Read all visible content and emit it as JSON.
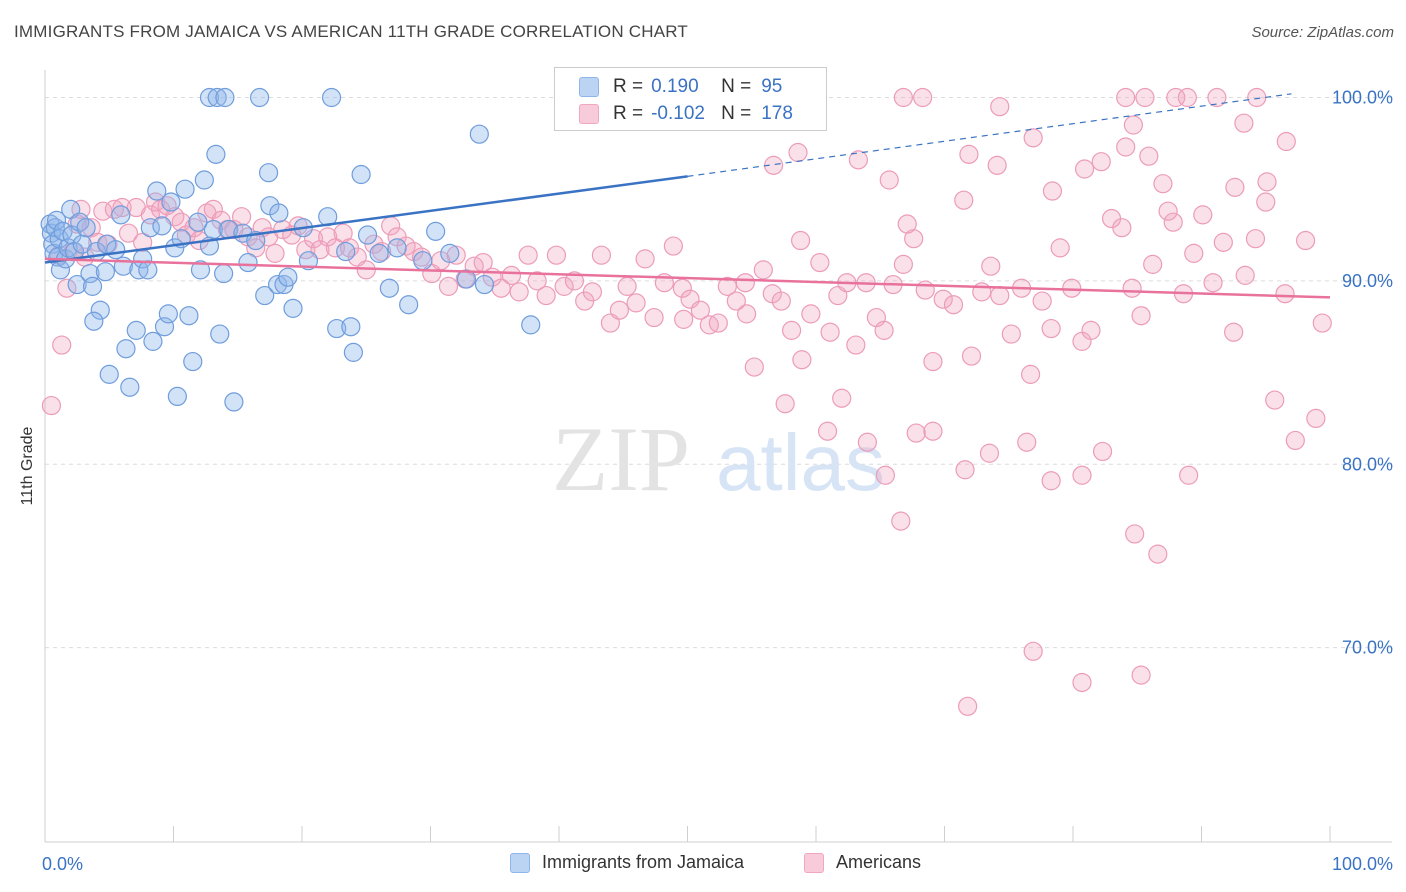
{
  "header": {
    "title": "IMMIGRANTS FROM JAMAICA VS AMERICAN 11TH GRADE CORRELATION CHART",
    "source": "Source: ZipAtlas.com"
  },
  "watermark": {
    "zip": "ZIP",
    "atlas": "atlas"
  },
  "legend": {
    "rows": [
      {
        "r_label": "R =",
        "r_value": "0.190",
        "n_label": "N =",
        "n_value": "95",
        "color": "#8fb6ea"
      },
      {
        "r_label": "R =",
        "r_value": "-0.102",
        "n_label": "N =",
        "n_value": "178",
        "color": "#f2a6bf"
      }
    ]
  },
  "bottom_legend": {
    "items": [
      {
        "label": "Immigrants from Jamaica",
        "color": "#8fb6ea"
      },
      {
        "label": "Americans",
        "color": "#f2a6bf"
      }
    ]
  },
  "chart_data": {
    "type": "scatter",
    "ylabel": "11th Grade",
    "xlabel": "",
    "x_tick_labels": [
      "0.0%",
      "100.0%"
    ],
    "y_tick_labels": [
      "100.0%",
      "90.0%",
      "80.0%",
      "70.0%"
    ],
    "xlim": [
      0,
      100
    ],
    "ylim": [
      59.4,
      101.5
    ],
    "y_ticks": [
      100,
      90,
      80,
      70
    ],
    "grid": "horizontal dashed",
    "colors": {
      "blue": "#3a73c4",
      "blue_fill": "#8fb6ea",
      "pink": "#e8729b",
      "pink_fill": "#f2a6bf",
      "value_text": "#3a73c4"
    },
    "series": [
      {
        "name": "Immigrants from Jamaica",
        "trend": {
          "x": [
            0,
            50
          ],
          "y": [
            91.0,
            95.7
          ],
          "extended": {
            "x": [
              50,
              97
            ],
            "y": [
              95.7,
              100.2
            ]
          }
        },
        "points": [
          [
            0.4,
            93.1
          ],
          [
            0.5,
            92.6
          ],
          [
            0.6,
            92.0
          ],
          [
            0.7,
            91.5
          ],
          [
            0.8,
            92.9
          ],
          [
            0.9,
            93.3
          ],
          [
            1.0,
            91.3
          ],
          [
            1.1,
            92.3
          ],
          [
            1.2,
            90.6
          ],
          [
            1.4,
            92.7
          ],
          [
            1.6,
            91.2
          ],
          [
            1.8,
            91.8
          ],
          [
            2.0,
            93.9
          ],
          [
            2.1,
            92.5
          ],
          [
            2.3,
            91.6
          ],
          [
            2.5,
            89.8
          ],
          [
            2.7,
            93.2
          ],
          [
            2.9,
            92.0
          ],
          [
            3.2,
            92.9
          ],
          [
            3.5,
            90.4
          ],
          [
            3.7,
            89.7
          ],
          [
            4.0,
            91.6
          ],
          [
            4.3,
            88.4
          ],
          [
            3.8,
            87.8
          ],
          [
            4.7,
            90.5
          ],
          [
            4.8,
            92.0
          ],
          [
            5.0,
            84.9
          ],
          [
            5.5,
            91.7
          ],
          [
            5.9,
            93.6
          ],
          [
            6.1,
            90.8
          ],
          [
            6.3,
            86.3
          ],
          [
            6.6,
            84.2
          ],
          [
            7.1,
            87.3
          ],
          [
            7.3,
            90.6
          ],
          [
            7.6,
            91.2
          ],
          [
            8.0,
            90.6
          ],
          [
            8.2,
            92.9
          ],
          [
            8.4,
            86.7
          ],
          [
            8.7,
            94.9
          ],
          [
            9.1,
            93.0
          ],
          [
            9.3,
            87.5
          ],
          [
            9.6,
            88.2
          ],
          [
            9.8,
            94.3
          ],
          [
            10.1,
            91.8
          ],
          [
            10.3,
            83.7
          ],
          [
            10.6,
            92.3
          ],
          [
            10.9,
            95.0
          ],
          [
            11.2,
            88.1
          ],
          [
            11.5,
            85.6
          ],
          [
            11.9,
            93.2
          ],
          [
            12.1,
            90.6
          ],
          [
            12.4,
            95.5
          ],
          [
            12.8,
            91.9
          ],
          [
            13.1,
            92.8
          ],
          [
            13.3,
            96.9
          ],
          [
            13.6,
            87.1
          ],
          [
            13.9,
            90.4
          ],
          [
            14.3,
            92.8
          ],
          [
            14.7,
            83.4
          ],
          [
            15.4,
            92.6
          ],
          [
            15.8,
            91.0
          ],
          [
            16.4,
            92.2
          ],
          [
            17.1,
            89.2
          ],
          [
            17.4,
            95.9
          ],
          [
            17.5,
            94.1
          ],
          [
            18.1,
            89.8
          ],
          [
            18.2,
            93.7
          ],
          [
            18.6,
            89.8
          ],
          [
            18.9,
            90.2
          ],
          [
            19.3,
            88.5
          ],
          [
            20.1,
            92.9
          ],
          [
            20.5,
            91.1
          ],
          [
            22.0,
            93.5
          ],
          [
            22.7,
            87.4
          ],
          [
            23.4,
            91.6
          ],
          [
            23.8,
            87.5
          ],
          [
            24.0,
            86.1
          ],
          [
            24.6,
            95.8
          ],
          [
            25.1,
            92.5
          ],
          [
            26.0,
            91.5
          ],
          [
            26.8,
            89.6
          ],
          [
            27.4,
            91.8
          ],
          [
            28.3,
            88.7
          ],
          [
            29.4,
            91.1
          ],
          [
            30.4,
            92.7
          ],
          [
            31.5,
            91.5
          ],
          [
            32.8,
            90.1
          ],
          [
            34.2,
            89.8
          ],
          [
            37.8,
            87.6
          ],
          [
            12.8,
            100.0
          ],
          [
            13.4,
            100.0
          ],
          [
            14.0,
            100.0
          ],
          [
            16.7,
            100.0
          ],
          [
            22.3,
            100.0
          ],
          [
            33.8,
            98.0
          ]
        ]
      },
      {
        "name": "Americans",
        "trend": {
          "x": [
            0,
            100
          ],
          "y": [
            91.2,
            89.1
          ]
        },
        "points": [
          [
            0.5,
            83.2
          ],
          [
            1.1,
            91.4
          ],
          [
            1.3,
            86.5
          ],
          [
            1.7,
            89.6
          ],
          [
            2.2,
            91.6
          ],
          [
            2.5,
            93.1
          ],
          [
            2.8,
            93.9
          ],
          [
            3.1,
            91.3
          ],
          [
            3.6,
            92.9
          ],
          [
            4.1,
            92.1
          ],
          [
            4.5,
            93.8
          ],
          [
            4.9,
            92.0
          ],
          [
            5.4,
            93.9
          ],
          [
            6.0,
            94.0
          ],
          [
            6.5,
            92.6
          ],
          [
            7.1,
            94.0
          ],
          [
            7.6,
            92.1
          ],
          [
            8.2,
            93.6
          ],
          [
            8.6,
            94.3
          ],
          [
            9.0,
            93.9
          ],
          [
            9.5,
            94.1
          ],
          [
            10.1,
            93.5
          ],
          [
            10.6,
            93.2
          ],
          [
            11.0,
            92.5
          ],
          [
            11.6,
            92.9
          ],
          [
            12.0,
            92.2
          ],
          [
            12.6,
            93.7
          ],
          [
            13.1,
            93.9
          ],
          [
            13.7,
            93.3
          ],
          [
            14.2,
            92.8
          ],
          [
            14.7,
            92.8
          ],
          [
            15.3,
            93.5
          ],
          [
            15.8,
            92.4
          ],
          [
            16.4,
            91.8
          ],
          [
            16.9,
            92.9
          ],
          [
            17.4,
            92.4
          ],
          [
            17.9,
            91.5
          ],
          [
            18.5,
            92.8
          ],
          [
            19.2,
            92.5
          ],
          [
            19.7,
            93.0
          ],
          [
            20.3,
            91.7
          ],
          [
            20.9,
            92.3
          ],
          [
            21.4,
            91.7
          ],
          [
            22.0,
            92.4
          ],
          [
            22.6,
            91.8
          ],
          [
            23.2,
            92.6
          ],
          [
            23.7,
            91.8
          ],
          [
            24.3,
            91.3
          ],
          [
            25.0,
            90.6
          ],
          [
            25.6,
            92.0
          ],
          [
            26.2,
            91.6
          ],
          [
            26.9,
            93.0
          ],
          [
            27.4,
            92.4
          ],
          [
            28.1,
            91.9
          ],
          [
            28.7,
            91.6
          ],
          [
            29.3,
            91.3
          ],
          [
            30.1,
            90.4
          ],
          [
            30.8,
            91.1
          ],
          [
            31.4,
            89.7
          ],
          [
            32.0,
            91.4
          ],
          [
            32.7,
            90.1
          ],
          [
            33.4,
            90.8
          ],
          [
            34.1,
            91.0
          ],
          [
            34.8,
            90.2
          ],
          [
            35.5,
            89.6
          ],
          [
            36.3,
            90.3
          ],
          [
            36.9,
            89.4
          ],
          [
            37.6,
            91.4
          ],
          [
            38.3,
            90.0
          ],
          [
            39.0,
            89.2
          ],
          [
            39.8,
            91.4
          ],
          [
            40.4,
            89.7
          ],
          [
            41.2,
            90.0
          ],
          [
            42.0,
            88.9
          ],
          [
            42.6,
            89.4
          ],
          [
            43.3,
            91.4
          ],
          [
            44.0,
            87.7
          ],
          [
            44.7,
            88.4
          ],
          [
            45.3,
            89.7
          ],
          [
            46.0,
            88.8
          ],
          [
            46.7,
            91.2
          ],
          [
            47.4,
            88.0
          ],
          [
            48.2,
            89.9
          ],
          [
            48.9,
            91.9
          ],
          [
            49.6,
            89.6
          ],
          [
            50.2,
            89.0
          ],
          [
            51.0,
            88.4
          ],
          [
            51.7,
            87.6
          ],
          [
            52.4,
            87.7
          ],
          [
            53.1,
            89.7
          ],
          [
            53.8,
            88.9
          ],
          [
            54.5,
            89.9
          ],
          [
            55.2,
            85.3
          ],
          [
            55.9,
            90.6
          ],
          [
            56.6,
            89.3
          ],
          [
            57.3,
            88.9
          ],
          [
            58.1,
            87.3
          ],
          [
            58.8,
            92.2
          ],
          [
            59.6,
            88.2
          ],
          [
            60.3,
            91.0
          ],
          [
            61.1,
            87.2
          ],
          [
            61.7,
            89.2
          ],
          [
            62.4,
            89.9
          ],
          [
            63.1,
            86.5
          ],
          [
            63.9,
            89.9
          ],
          [
            64.7,
            88.0
          ],
          [
            65.3,
            87.3
          ],
          [
            66.0,
            89.8
          ],
          [
            66.8,
            90.9
          ],
          [
            67.6,
            92.3
          ],
          [
            68.5,
            89.5
          ],
          [
            69.1,
            85.6
          ],
          [
            69.9,
            89.0
          ],
          [
            70.7,
            88.7
          ],
          [
            71.5,
            94.4
          ],
          [
            72.1,
            85.9
          ],
          [
            72.9,
            89.4
          ],
          [
            73.6,
            90.8
          ],
          [
            74.3,
            89.2
          ],
          [
            75.2,
            87.1
          ],
          [
            76.0,
            89.6
          ],
          [
            76.7,
            84.9
          ],
          [
            77.6,
            88.9
          ],
          [
            78.3,
            87.4
          ],
          [
            79.0,
            91.8
          ],
          [
            79.9,
            89.6
          ],
          [
            80.7,
            86.7
          ],
          [
            81.4,
            87.3
          ],
          [
            82.2,
            96.5
          ],
          [
            83.0,
            93.4
          ],
          [
            83.8,
            92.9
          ],
          [
            84.6,
            89.6
          ],
          [
            85.3,
            88.1
          ],
          [
            86.2,
            90.9
          ],
          [
            87.0,
            95.3
          ],
          [
            87.8,
            93.2
          ],
          [
            88.6,
            89.3
          ],
          [
            89.4,
            91.5
          ],
          [
            90.1,
            93.6
          ],
          [
            90.9,
            89.9
          ],
          [
            91.7,
            92.1
          ],
          [
            92.5,
            87.2
          ],
          [
            93.4,
            90.3
          ],
          [
            94.2,
            92.3
          ],
          [
            95.0,
            94.3
          ],
          [
            95.7,
            83.5
          ],
          [
            96.5,
            89.3
          ],
          [
            97.3,
            81.3
          ],
          [
            98.1,
            92.2
          ],
          [
            98.9,
            82.5
          ],
          [
            99.4,
            87.7
          ],
          [
            56.7,
            96.3
          ],
          [
            58.6,
            97.0
          ],
          [
            63.3,
            96.6
          ],
          [
            65.7,
            95.5
          ],
          [
            67.1,
            93.1
          ],
          [
            71.9,
            96.9
          ],
          [
            74.1,
            96.3
          ],
          [
            76.9,
            97.8
          ],
          [
            78.4,
            94.9
          ],
          [
            80.9,
            96.1
          ],
          [
            84.1,
            97.3
          ],
          [
            85.9,
            96.8
          ],
          [
            87.4,
            93.8
          ],
          [
            92.6,
            95.1
          ],
          [
            93.3,
            98.6
          ],
          [
            95.1,
            95.4
          ],
          [
            96.6,
            97.6
          ],
          [
            49.7,
            87.9
          ],
          [
            54.6,
            88.2
          ],
          [
            58.9,
            85.7
          ],
          [
            57.6,
            83.3
          ],
          [
            60.9,
            81.8
          ],
          [
            62.0,
            83.6
          ],
          [
            64.0,
            81.2
          ],
          [
            65.4,
            79.4
          ],
          [
            66.6,
            76.9
          ],
          [
            67.8,
            81.7
          ],
          [
            69.1,
            81.8
          ],
          [
            71.6,
            79.7
          ],
          [
            73.5,
            80.6
          ],
          [
            76.4,
            81.2
          ],
          [
            78.3,
            79.1
          ],
          [
            80.7,
            79.4
          ],
          [
            82.3,
            80.7
          ],
          [
            84.8,
            76.2
          ],
          [
            86.6,
            75.1
          ],
          [
            89.0,
            79.4
          ],
          [
            71.8,
            66.8
          ],
          [
            76.9,
            69.8
          ],
          [
            80.7,
            68.1
          ],
          [
            85.3,
            68.5
          ],
          [
            66.8,
            100.0
          ],
          [
            68.3,
            100.0
          ],
          [
            84.1,
            100.0
          ],
          [
            85.6,
            100.0
          ],
          [
            88.0,
            100.0
          ],
          [
            88.9,
            100.0
          ],
          [
            91.2,
            100.0
          ],
          [
            94.3,
            100.0
          ],
          [
            74.3,
            99.5
          ],
          [
            84.7,
            98.5
          ]
        ]
      }
    ]
  }
}
